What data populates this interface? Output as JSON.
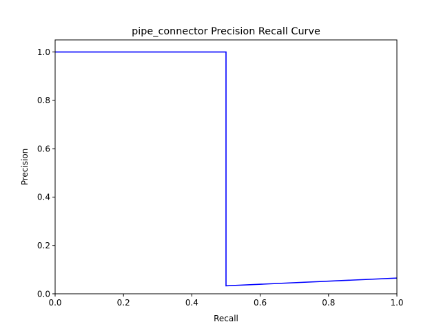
{
  "chart_data": {
    "type": "line",
    "title": "pipe_connector Precision Recall Curve",
    "xlabel": "Recall",
    "ylabel": "Precision",
    "xlim": [
      0.0,
      1.0
    ],
    "ylim": [
      0.0,
      1.05
    ],
    "xticks": [
      0.0,
      0.2,
      0.4,
      0.6,
      0.8,
      1.0
    ],
    "xtick_labels": [
      "0.0",
      "0.2",
      "0.4",
      "0.6",
      "0.8",
      "1.0"
    ],
    "yticks": [
      0.0,
      0.2,
      0.4,
      0.6,
      0.8,
      1.0
    ],
    "ytick_labels": [
      "0.0",
      "0.2",
      "0.4",
      "0.6",
      "0.8",
      "1.0"
    ],
    "grid": false,
    "legend": false,
    "series": [
      {
        "color": "#0000ff",
        "x": [
          0.0,
          0.5,
          0.5,
          1.0
        ],
        "y": [
          1.0,
          1.0,
          0.033,
          0.065
        ]
      }
    ]
  }
}
